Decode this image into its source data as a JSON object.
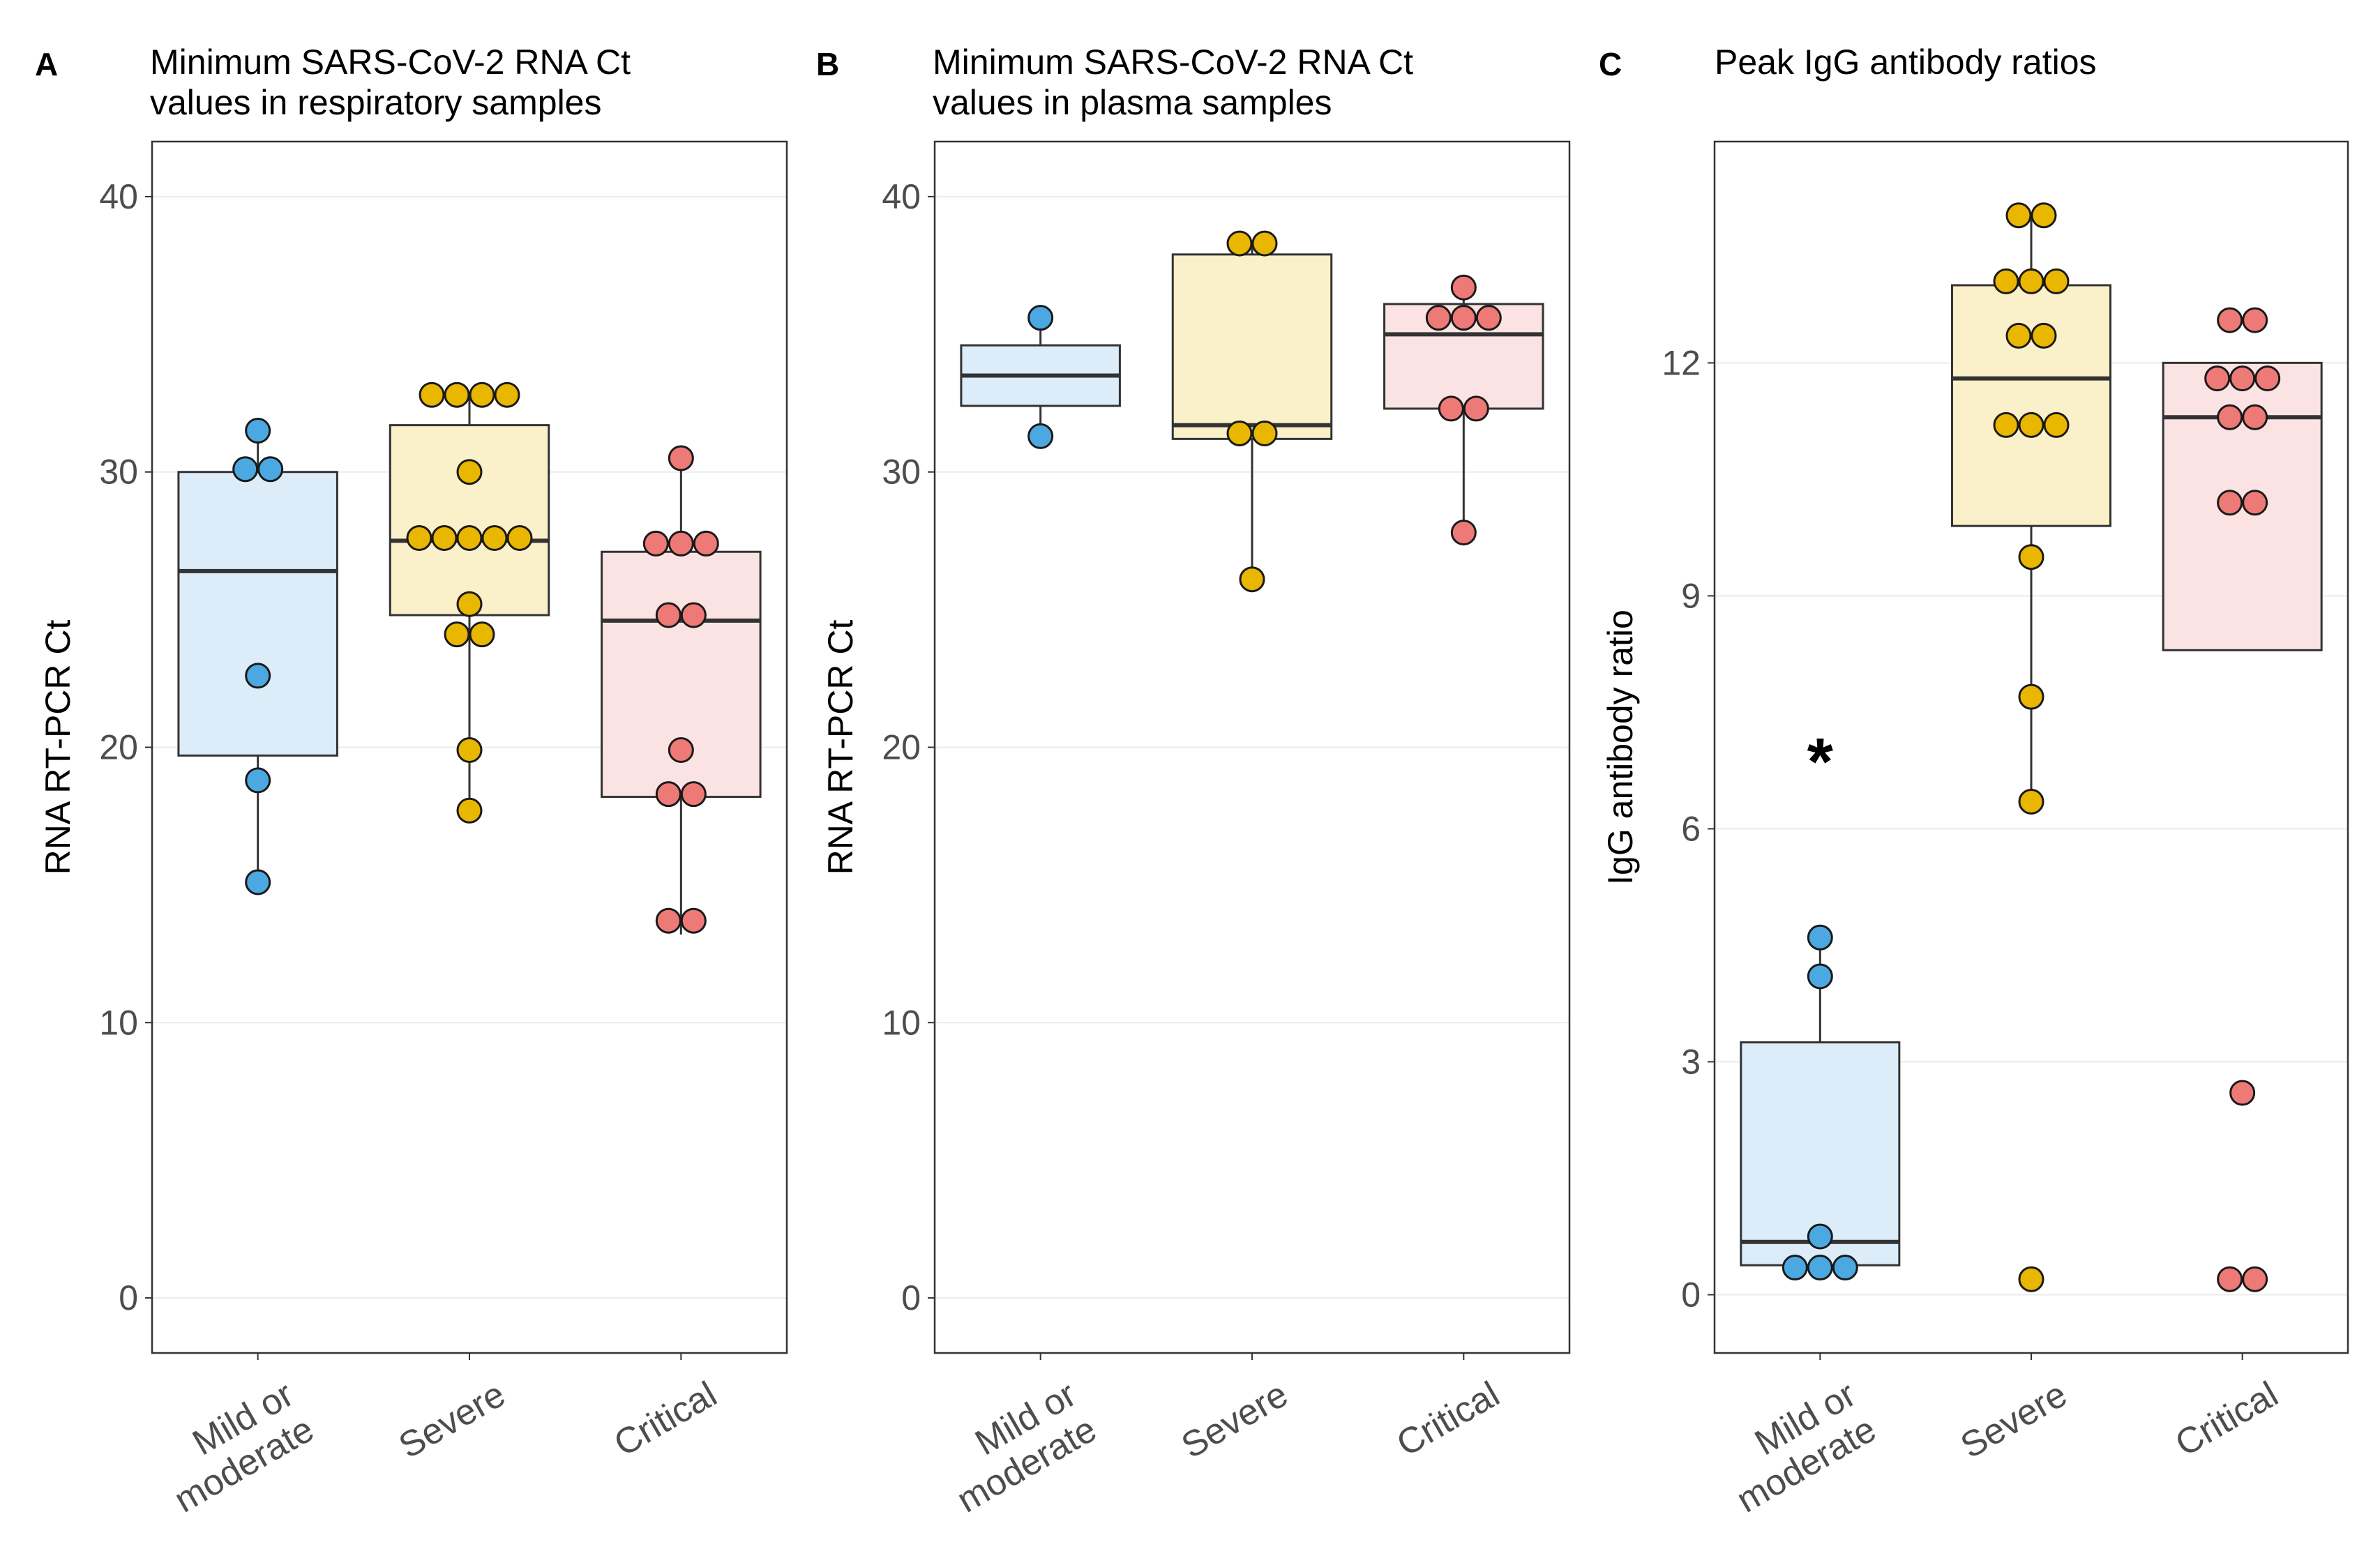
{
  "chart_data": [
    {
      "type": "box",
      "letter": "A",
      "title": [
        "Minimum SARS-CoV-2 RNA Ct",
        "values in respiratory samples"
      ],
      "ylabel": "RNA RT-PCR Ct",
      "ylim": [
        -2,
        42
      ],
      "yticks": [
        0,
        10,
        20,
        30,
        40
      ],
      "categories": [
        [
          "Mild or",
          "moderate"
        ],
        [
          "Severe"
        ],
        [
          "Critical"
        ]
      ],
      "groups": [
        {
          "name": "Mild or moderate",
          "q1": 19.7,
          "median": 26.4,
          "q3": 30.0,
          "whisker_low": 15.1,
          "whisker_high": 31.5,
          "fill": "#dcedf9",
          "point": "#4ba8e0",
          "points": [
            31.5,
            30.1,
            30.1,
            22.6,
            18.8,
            15.1
          ]
        },
        {
          "name": "Severe",
          "q1": 24.8,
          "median": 27.5,
          "q3": 31.7,
          "whisker_low": 17.6,
          "whisker_high": 32.8,
          "fill": "#faf0c9",
          "point": "#e9b600",
          "points": [
            32.8,
            32.8,
            32.8,
            32.8,
            30.0,
            27.6,
            27.6,
            27.6,
            27.6,
            27.6,
            25.2,
            24.1,
            24.1,
            19.9,
            17.7
          ]
        },
        {
          "name": "Critical",
          "q1": 18.2,
          "median": 24.6,
          "q3": 27.1,
          "whisker_low": 13.2,
          "whisker_high": 30.6,
          "fill": "#fbe3e3",
          "point": "#ee7a78",
          "points": [
            30.5,
            27.4,
            27.4,
            27.4,
            24.8,
            24.8,
            19.9,
            18.3,
            18.3,
            13.7,
            13.7
          ]
        }
      ]
    },
    {
      "type": "box",
      "letter": "B",
      "title": [
        "Minimum SARS-CoV-2 RNA Ct",
        "values in plasma samples"
      ],
      "ylabel": "RNA RT-PCR Ct",
      "ylim": [
        -2,
        42
      ],
      "yticks": [
        0,
        10,
        20,
        30,
        40
      ],
      "categories": [
        [
          "Mild or",
          "moderate"
        ],
        [
          "Severe"
        ],
        [
          "Critical"
        ]
      ],
      "groups": [
        {
          "name": "Mild or moderate",
          "q1": 32.4,
          "median": 33.5,
          "q3": 34.6,
          "whisker_low": 31.3,
          "whisker_high": 35.6,
          "fill": "#dcedf9",
          "point": "#4ba8e0",
          "points": [
            35.6,
            31.3
          ]
        },
        {
          "name": "Severe",
          "q1": 31.2,
          "median": 31.7,
          "q3": 37.9,
          "whisker_low": 26.1,
          "whisker_high": 38.3,
          "fill": "#faf0c9",
          "point": "#e9b600",
          "points": [
            38.3,
            38.3,
            31.4,
            31.4,
            26.1
          ]
        },
        {
          "name": "Critical",
          "q1": 32.3,
          "median": 35.0,
          "q3": 36.1,
          "whisker_low": 27.8,
          "whisker_high": 36.7,
          "fill": "#fbe3e3",
          "point": "#ee7a78",
          "points": [
            36.7,
            35.6,
            35.6,
            35.6,
            32.3,
            32.3,
            27.8
          ]
        }
      ]
    },
    {
      "type": "box",
      "letter": "C",
      "title": [
        "Peak IgG antibody ratios"
      ],
      "ylabel": "IgG antibody ratio",
      "ylim": [
        -0.75,
        14.85
      ],
      "yticks": [
        0,
        3,
        6,
        9,
        12
      ],
      "categories": [
        [
          "Mild or",
          "moderate"
        ],
        [
          "Severe"
        ],
        [
          "Critical"
        ]
      ],
      "annotation": {
        "text": "*",
        "group": 0,
        "value": 7.0
      },
      "groups": [
        {
          "name": "Mild or moderate",
          "q1": 0.38,
          "median": 0.68,
          "q3": 3.25,
          "whisker_low": 0.38,
          "whisker_high": 4.6,
          "fill": "#dcedf9",
          "point": "#4ba8e0",
          "points": [
            4.6,
            4.1,
            0.75,
            0.35,
            0.35,
            0.35
          ]
        },
        {
          "name": "Severe",
          "q1": 9.9,
          "median": 11.8,
          "q3": 13.0,
          "whisker_low": 6.3,
          "whisker_high": 13.9,
          "fill": "#faf0c9",
          "point": "#e9b600",
          "points": [
            13.9,
            13.9,
            13.05,
            13.05,
            13.05,
            12.35,
            12.35,
            11.2,
            11.2,
            11.2,
            9.5,
            7.7,
            6.35,
            0.2
          ]
        },
        {
          "name": "Critical",
          "q1": 8.3,
          "median": 11.3,
          "q3": 12.0,
          "whisker_low": 8.3,
          "whisker_high": 12.0,
          "fill": "#fbe3e3",
          "point": "#ee7a78",
          "points": [
            12.55,
            12.55,
            11.8,
            11.8,
            11.8,
            11.3,
            11.3,
            10.2,
            10.2,
            2.6,
            0.2,
            0.2
          ]
        }
      ]
    }
  ]
}
